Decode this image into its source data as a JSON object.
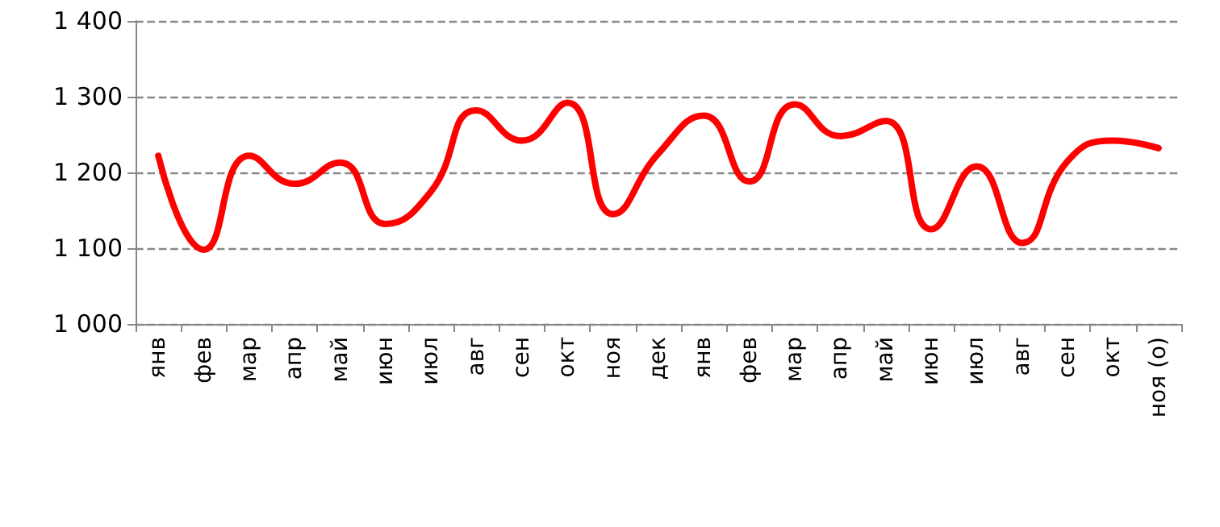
{
  "chart_data": {
    "type": "line",
    "categories": [
      "янв",
      "фев",
      "мар",
      "апр",
      "май",
      "июн",
      "июл",
      "авг",
      "сен",
      "окт",
      "ноя",
      "дек",
      "янв",
      "фев",
      "мар",
      "апр",
      "май",
      "июн",
      "июл",
      "авг",
      "сен",
      "окт",
      "ноя (о)"
    ],
    "series": [
      {
        "color": "#ff0000",
        "values": [
          1222,
          1098,
          1222,
          1185,
          1213,
          1132,
          1175,
          1282,
          1242,
          1292,
          1145,
          1225,
          1275,
          1188,
          1290,
          1248,
          1268,
          1125,
          1208,
          1107,
          1215,
          1242,
          1232
        ]
      }
    ],
    "ylim": [
      1000,
      1400
    ],
    "yticks": [
      {
        "value": 1000,
        "label": "1 000"
      },
      {
        "value": 1100,
        "label": "1 100"
      },
      {
        "value": 1200,
        "label": "1 200"
      },
      {
        "value": 1300,
        "label": "1 300"
      },
      {
        "value": 1400,
        "label": "1 400"
      }
    ],
    "grid": "y",
    "marker": "none",
    "line_style": "solid"
  }
}
